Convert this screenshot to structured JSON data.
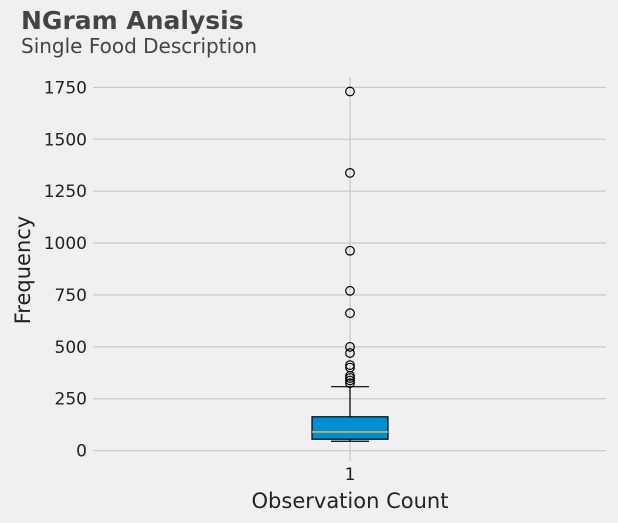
{
  "chart_data": {
    "type": "box",
    "title": "NGram Analysis",
    "subtitle": "Single Food Description",
    "xlabel": "Observation Count",
    "ylabel": "Frequency",
    "categories": [
      "1"
    ],
    "ylim": [
      -50,
      1800
    ],
    "yticks": [
      0,
      250,
      500,
      750,
      1000,
      1250,
      1500,
      1750
    ],
    "grid": true,
    "box": {
      "whisker_low": 45,
      "q1": 55,
      "median": 90,
      "q3": 163,
      "whisker_high": 308
    },
    "outliers": [
      325,
      338,
      350,
      360,
      400,
      412,
      470,
      500,
      662,
      770,
      963,
      1338,
      1730
    ],
    "colors": {
      "box_fill": "#008fd5",
      "median": "#e5ae38",
      "grid": "#cbcbcb",
      "background": "#f0f0f0"
    }
  }
}
